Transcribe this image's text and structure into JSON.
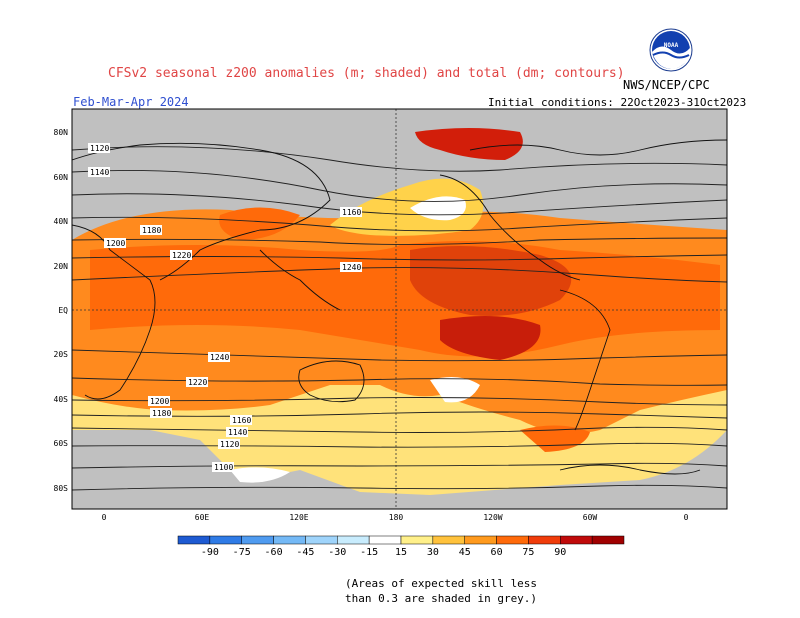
{
  "header": {
    "title": "CFSv2 seasonal z200 anomalies (m; shaded) and total (dm; contours)",
    "period": "Feb-Mar-Apr 2024",
    "initial_conditions": "Initial conditions: 22Oct2023-31Oct2023",
    "agency": "NWS/NCEP/CPC",
    "logo_text": "NOAA"
  },
  "axes": {
    "lat_labels": [
      "80N",
      "60N",
      "40N",
      "20N",
      "EQ",
      "20S",
      "40S",
      "60S",
      "80S"
    ],
    "lon_labels": [
      "0",
      "60E",
      "120E",
      "180",
      "120W",
      "60W",
      "0"
    ]
  },
  "contour_labels": [
    "1120",
    "1140",
    "1160",
    "1180",
    "1200",
    "1220",
    "1240",
    "1240",
    "1220",
    "1200",
    "1180",
    "1160",
    "1140",
    "1120",
    "1100"
  ],
  "legend": {
    "values": [
      "-90",
      "-75",
      "-60",
      "-45",
      "-30",
      "-15",
      "15",
      "30",
      "45",
      "60",
      "75",
      "90"
    ],
    "colors": [
      "#1e5ad2",
      "#2f7be6",
      "#4f9bf0",
      "#74b9f6",
      "#9fd4fb",
      "#c8ecfd",
      "#ffffff",
      "#fff08a",
      "#ffc23c",
      "#ff9a1e",
      "#ff6a0a",
      "#f03c0a",
      "#c00a0a",
      "#a00000"
    ]
  },
  "note": {
    "line1": "(Areas of expected skill less",
    "line2": "than 0.3 are shaded in grey.)"
  }
}
